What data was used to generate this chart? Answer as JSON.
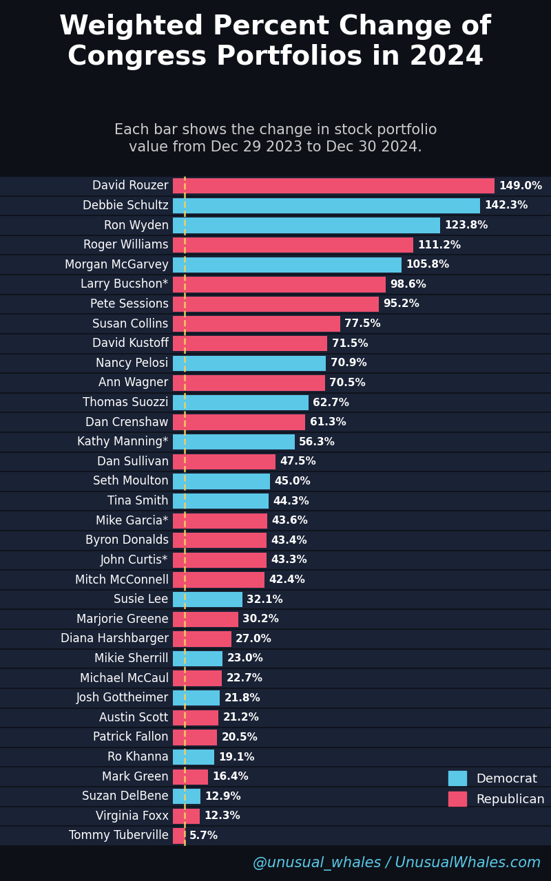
{
  "title": "Weighted Percent Change of\nCongress Portfolios in 2024",
  "subtitle": "Each bar shows the change in stock portfolio\nvalue from Dec 29 2023 to Dec 30 2024.",
  "footer": "@unusual_whales / UnusualWhales.com",
  "background_color": "#0d1117",
  "plot_bg_color": "#1a2235",
  "bar_color_democrat": "#5bc8e8",
  "bar_color_republican": "#f05070",
  "names": [
    "David Rouzer",
    "Debbie Schultz",
    "Ron Wyden",
    "Roger Williams",
    "Morgan McGarvey",
    "Larry Bucshon*",
    "Pete Sessions",
    "Susan Collins",
    "David Kustoff",
    "Nancy Pelosi",
    "Ann Wagner",
    "Thomas Suozzi",
    "Dan Crenshaw",
    "Kathy Manning*",
    "Dan Sullivan",
    "Seth Moulton",
    "Tina Smith",
    "Mike Garcia*",
    "Byron Donalds",
    "John Curtis*",
    "Mitch McConnell",
    "Susie Lee",
    "Marjorie Greene",
    "Diana Harshbarger",
    "Mikie Sherrill",
    "Michael McCaul",
    "Josh Gottheimer",
    "Austin Scott",
    "Patrick Fallon",
    "Ro Khanna",
    "Mark Green",
    "Suzan DelBene",
    "Virginia Foxx",
    "Tommy Tuberville"
  ],
  "values": [
    149.0,
    142.3,
    123.8,
    111.2,
    105.8,
    98.6,
    95.2,
    77.5,
    71.5,
    70.9,
    70.5,
    62.7,
    61.3,
    56.3,
    47.5,
    45.0,
    44.3,
    43.6,
    43.4,
    43.3,
    42.4,
    32.1,
    30.2,
    27.0,
    23.0,
    22.7,
    21.8,
    21.2,
    20.5,
    19.1,
    16.4,
    12.9,
    12.3,
    5.7
  ],
  "parties": [
    "R",
    "D",
    "D",
    "R",
    "D",
    "R",
    "R",
    "R",
    "R",
    "D",
    "R",
    "D",
    "R",
    "D",
    "R",
    "D",
    "D",
    "R",
    "R",
    "R",
    "R",
    "D",
    "R",
    "R",
    "D",
    "R",
    "D",
    "R",
    "R",
    "D",
    "R",
    "D",
    "R",
    "R"
  ],
  "title_color": "#ffffff",
  "subtitle_color": "#cccccc",
  "label_color": "#ffffff",
  "value_color": "#ffffff",
  "footer_color": "#5bc8e8",
  "dashed_line_color": "#f5d060",
  "title_fontsize": 28,
  "subtitle_fontsize": 15,
  "label_fontsize": 12,
  "value_fontsize": 11,
  "footer_fontsize": 15
}
